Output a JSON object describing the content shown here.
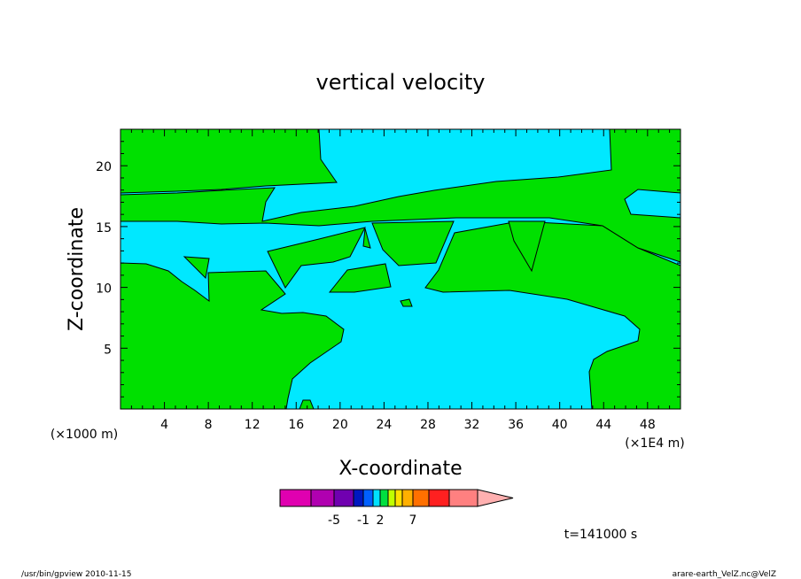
{
  "chart_data": {
    "type": "heatmap",
    "title": "vertical velocity",
    "xlabel": "X-coordinate",
    "ylabel": "Z-coordinate",
    "x_unit_left": "(×1000 m)",
    "x_unit_right": "(×1E4 m)",
    "xlim": [
      0,
      51
    ],
    "ylim": [
      0,
      23
    ],
    "x_ticks": [
      4,
      8,
      12,
      16,
      20,
      24,
      28,
      32,
      36,
      40,
      44,
      48
    ],
    "y_ticks": [
      5,
      10,
      15,
      20
    ],
    "colorbar": {
      "colors": [
        "#e000b0",
        "#b000b0",
        "#7000b0",
        "#0018c0",
        "#0060ff",
        "#00e0ff",
        "#00e040",
        "#c0ff00",
        "#ffe000",
        "#ffb000",
        "#ff7000",
        "#ff2020",
        "#ff8080",
        "#ffb0b0"
      ],
      "labels": [
        "-5",
        "-1",
        "2",
        "7"
      ],
      "label_bins": [
        2,
        4,
        6,
        10
      ]
    },
    "region_colors": {
      "negative": "#00e8ff",
      "positive": "#00e000"
    },
    "time_label": "t=141000 s"
  },
  "footer": {
    "left": "/usr/bin/gpview   2010-11-15",
    "right": "arare-earth_VelZ.nc@VelZ"
  }
}
